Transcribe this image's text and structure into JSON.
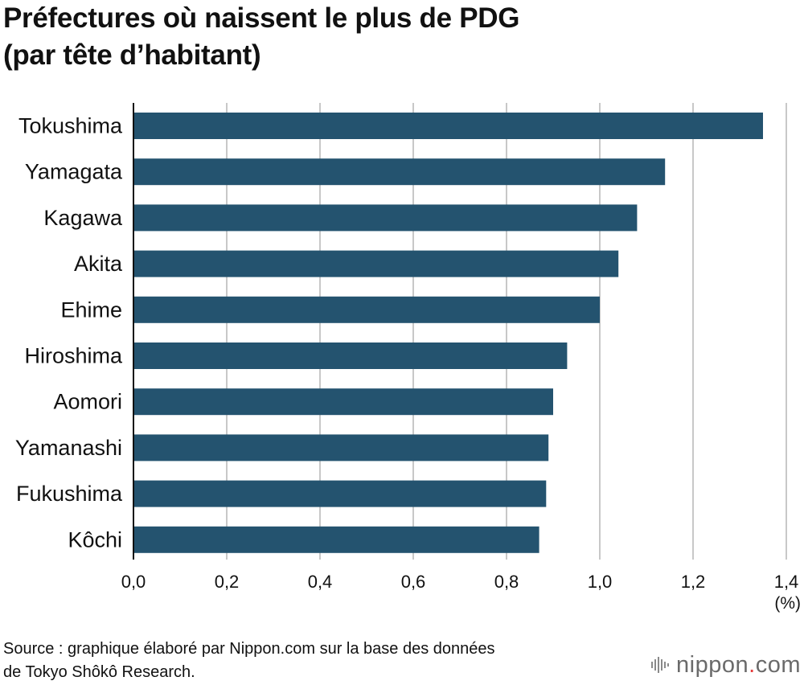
{
  "chart_data": {
    "type": "bar",
    "orientation": "horizontal",
    "title_lines": [
      "Préfectures où naissent le plus de PDG",
      "(par tête d’habitant)"
    ],
    "categories": [
      "Tokushima",
      "Yamagata",
      "Kagawa",
      "Akita",
      "Ehime",
      "Hiroshima",
      "Aomori",
      "Yamanashi",
      "Fukushima",
      "Kôchi"
    ],
    "values": [
      1.35,
      1.14,
      1.08,
      1.04,
      1.0,
      0.93,
      0.9,
      0.89,
      0.885,
      0.87
    ],
    "x_ticks": [
      "0,0",
      "0,2",
      "0,4",
      "0,6",
      "0,8",
      "1,0",
      "1,2",
      "1,4"
    ],
    "xlim": [
      0,
      1.4
    ],
    "unit_label": "(%)",
    "grid": true,
    "bar_color": "#24536f",
    "grid_color": "#c8c8c8"
  },
  "footer": {
    "source_lines": [
      "Source : graphique élaboré par Nippon.com sur la base des données",
      "de Tokyo Shôkô Research."
    ],
    "brand_name": "nippon",
    "brand_dot": ".",
    "brand_tld": "com",
    "brand_icon": "sound-wave-icon",
    "brand_dot_color": "#e63c3c"
  }
}
